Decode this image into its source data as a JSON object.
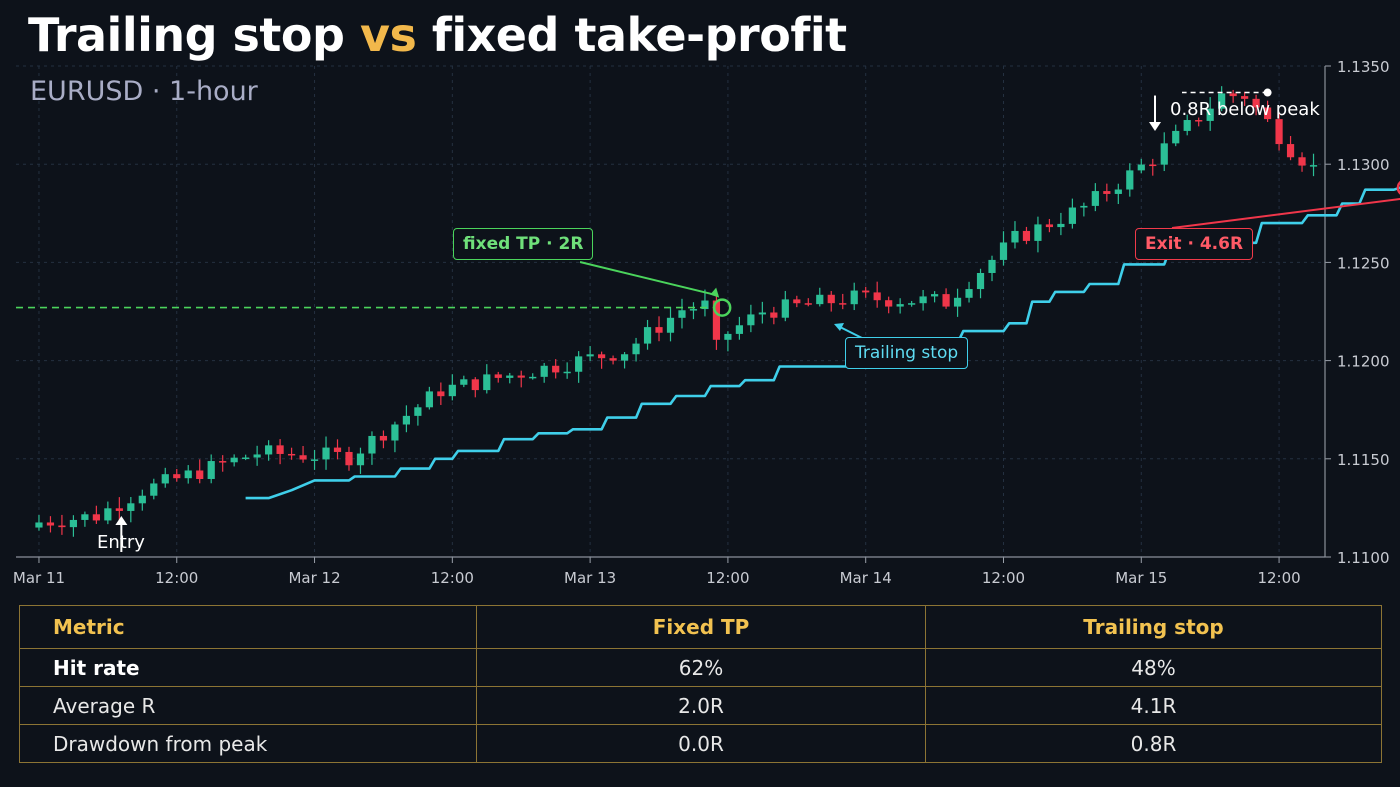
{
  "header": {
    "title_part1": "Trailing stop ",
    "title_vs": "vs",
    "title_part2": " fixed take-profit",
    "subtitle": "EURUSD · 1-hour"
  },
  "colors": {
    "background": "#0d121a",
    "up_candle": "#2bbf96",
    "down_candle": "#f0364a",
    "trailing_stop": "#3fcfea",
    "take_profit": "#4bd45c",
    "accent": "#f2b84b"
  },
  "chart_data": {
    "type": "candlestick",
    "instrument": "EURUSD",
    "timeframe": "1-hour",
    "ylim": [
      1.11,
      1.135
    ],
    "y_ticks": [
      "1.1100",
      "1.1150",
      "1.1200",
      "1.1250",
      "1.1300",
      "1.1350"
    ],
    "x_ticks": [
      "Mar 11",
      "12:00",
      "Mar 12",
      "12:00",
      "Mar 13",
      "12:00",
      "Mar 14",
      "12:00",
      "Mar 15",
      "12:00"
    ],
    "x_range_hours": [
      -2,
      112
    ],
    "close_anchors": [
      [
        0,
        1.1117
      ],
      [
        6,
        1.1121
      ],
      [
        10,
        1.1134
      ],
      [
        20,
        1.1153
      ],
      [
        28,
        1.1151
      ],
      [
        36,
        1.1185
      ],
      [
        44,
        1.1195
      ],
      [
        52,
        1.1205
      ],
      [
        57,
        1.1226
      ],
      [
        59,
        1.1228
      ],
      [
        60,
        1.121
      ],
      [
        64,
        1.1225
      ],
      [
        72,
        1.1232
      ],
      [
        80,
        1.123
      ],
      [
        86,
        1.1262
      ],
      [
        92,
        1.1278
      ],
      [
        98,
        1.1303
      ],
      [
        104,
        1.1335
      ],
      [
        106,
        1.1335
      ],
      [
        110,
        1.1308
      ],
      [
        114,
        1.1288
      ],
      [
        118,
        1.1285
      ],
      [
        124,
        1.1266
      ],
      [
        130,
        1.1253
      ]
    ],
    "trailing_stop": [
      [
        18,
        1.113
      ],
      [
        20,
        1.113
      ],
      [
        22,
        1.1134
      ],
      [
        24,
        1.1139
      ],
      [
        27,
        1.1139
      ],
      [
        27.5,
        1.1141
      ],
      [
        31,
        1.1141
      ],
      [
        31.5,
        1.1145
      ],
      [
        34,
        1.1145
      ],
      [
        34.5,
        1.115
      ],
      [
        36,
        1.115
      ],
      [
        36.5,
        1.1154
      ],
      [
        40,
        1.1154
      ],
      [
        40.5,
        1.116
      ],
      [
        43,
        1.116
      ],
      [
        43.5,
        1.1163
      ],
      [
        46,
        1.1163
      ],
      [
        46.5,
        1.1165
      ],
      [
        49,
        1.1165
      ],
      [
        49.5,
        1.1171
      ],
      [
        52,
        1.1171
      ],
      [
        52.5,
        1.1178
      ],
      [
        55,
        1.1178
      ],
      [
        55.5,
        1.1182
      ],
      [
        58,
        1.1182
      ],
      [
        58.5,
        1.1187
      ],
      [
        61,
        1.1187
      ],
      [
        61.5,
        1.119
      ],
      [
        64,
        1.119
      ],
      [
        64.5,
        1.1197
      ],
      [
        72,
        1.1197
      ],
      [
        72.5,
        1.1209
      ],
      [
        80,
        1.1209
      ],
      [
        80.5,
        1.1215
      ],
      [
        84,
        1.1215
      ],
      [
        84.5,
        1.1219
      ],
      [
        86,
        1.1219
      ],
      [
        86.5,
        1.123
      ],
      [
        88,
        1.123
      ],
      [
        88.5,
        1.1235
      ],
      [
        91,
        1.1235
      ],
      [
        91.5,
        1.1239
      ],
      [
        94,
        1.1239
      ],
      [
        94.5,
        1.1249
      ],
      [
        98,
        1.1249
      ],
      [
        98.5,
        1.1257
      ],
      [
        102,
        1.1257
      ],
      [
        102.5,
        1.126
      ],
      [
        106,
        1.126
      ],
      [
        106.5,
        1.127
      ],
      [
        110,
        1.127
      ],
      [
        110.5,
        1.1274
      ],
      [
        113,
        1.1274
      ],
      [
        113.5,
        1.128
      ],
      [
        115,
        1.128
      ],
      [
        115.5,
        1.1287
      ],
      [
        118,
        1.1287
      ],
      [
        118.5,
        1.1288
      ],
      [
        120,
        1.1288
      ]
    ],
    "fixed_tp_level": 1.1227,
    "fixed_tp_hit_hour": 59.5,
    "entry_hour": 7,
    "peak_hour": 107,
    "peak_price": 1.1337,
    "exit_hour": 119,
    "exit_price": 1.1288
  },
  "annotations": {
    "fixed_tp": "fixed TP · 2R",
    "exit": "Exit · 4.6R",
    "trailing": "Trailing stop",
    "entry": "Entry",
    "peak": "0.8R below peak"
  },
  "table": {
    "headers": [
      "Metric",
      "Fixed TP",
      "Trailing stop"
    ],
    "rows": [
      {
        "metric": "Hit rate",
        "fixed": "62%",
        "trailing": "48%"
      },
      {
        "metric": "Average R",
        "fixed": "2.0R",
        "trailing": "4.1R"
      },
      {
        "metric": "Drawdown from peak",
        "fixed": "0.0R",
        "trailing": "0.8R"
      }
    ]
  }
}
